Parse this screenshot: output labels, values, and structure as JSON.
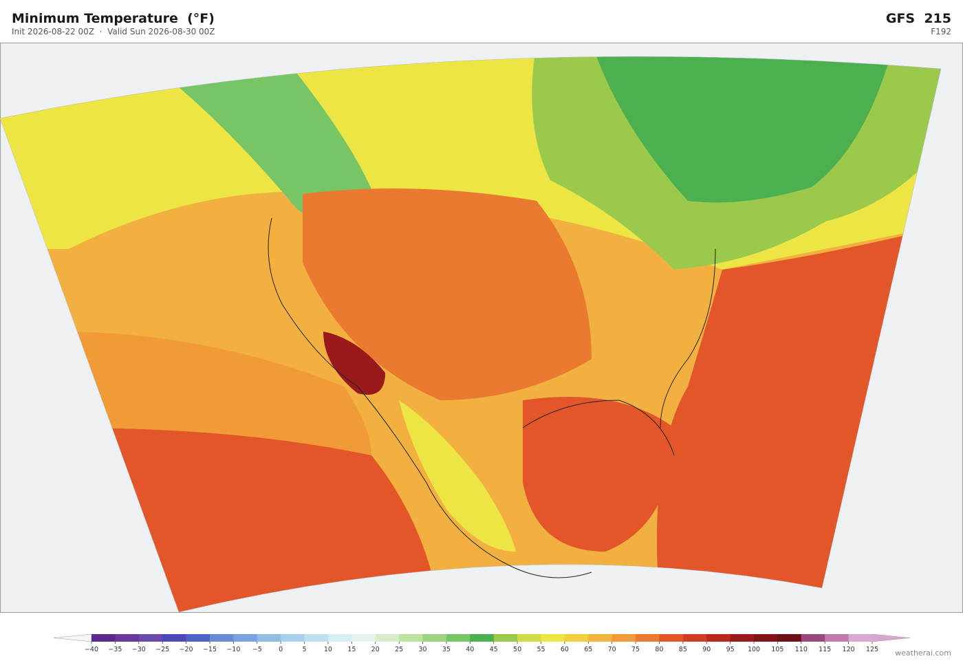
{
  "header": {
    "title": "Minimum Temperature  (°F)",
    "subtitle": "Init 2026-08-22 00Z  ·  Valid Sun 2026-08-30 00Z",
    "model": "GFS  215",
    "forecast_hour": "F192"
  },
  "colorbar": {
    "ticks": [
      {
        "value": -40,
        "label": "−40"
      },
      {
        "value": -35,
        "label": "−35"
      },
      {
        "value": -30,
        "label": "−30"
      },
      {
        "value": -25,
        "label": "−25"
      },
      {
        "value": -20,
        "label": "−20"
      },
      {
        "value": -15,
        "label": "−15"
      },
      {
        "value": -10,
        "label": "−10"
      },
      {
        "value": -5,
        "label": "−5"
      },
      0,
      5,
      10,
      15,
      20,
      25,
      30,
      35,
      40,
      45,
      50,
      55,
      60,
      65,
      70,
      75,
      80,
      85,
      90,
      95,
      100,
      105,
      110,
      115,
      120,
      125
    ],
    "colors": [
      "#5b2a8c",
      "#6a3a9a",
      "#6a4aac",
      "#4a4ab8",
      "#4e62c8",
      "#6a8ad4",
      "#7aa2dc",
      "#92bce4",
      "#a8d0ec",
      "#c0e0f0",
      "#d6eef4",
      "#e6f4ee",
      "#d8eccc",
      "#bde3a0",
      "#9dd480",
      "#78c565",
      "#4caf50",
      "#9bc94c",
      "#cfdc48",
      "#ece543",
      "#f2cf40",
      "#f3b53e",
      "#f09a38",
      "#ea7a30",
      "#e2562a",
      "#d33c24",
      "#b8281f",
      "#9a1a1c",
      "#821419",
      "#6e1018",
      "#9a4a7a",
      "#c07ab0",
      "#dba8d0"
    ],
    "under_color": "#f6f6fa",
    "over_color": "#d9a6d0"
  },
  "watermark": "weatherai.com"
}
